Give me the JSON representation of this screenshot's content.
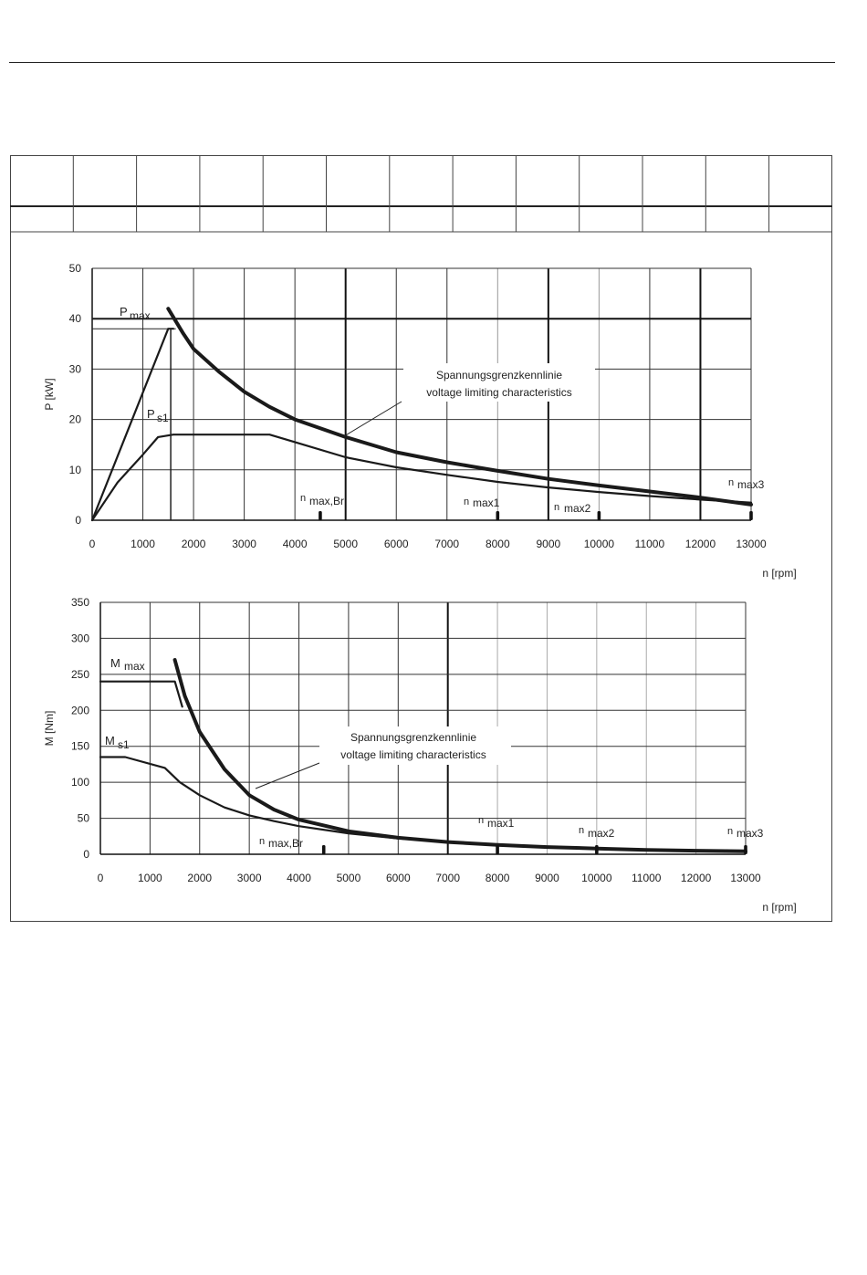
{
  "charts": {
    "power": {
      "ylabel": "P [kW]",
      "xlabel": "n [rpm]",
      "xticks": [
        "0",
        "1000",
        "2000",
        "3000",
        "4000",
        "5000",
        "6000",
        "7000",
        "8000",
        "9000",
        "10000",
        "11000",
        "12000",
        "13000"
      ],
      "yticks": [
        "0",
        "10",
        "20",
        "30",
        "40",
        "50"
      ],
      "annotation_line1": "Spannungsgrenzkennlinie",
      "annotation_line2": "voltage limiting characteristics",
      "label_pmax_main": "P",
      "label_pmax_sub": "max",
      "label_ps1_main": "P",
      "label_ps1_sub": "s1",
      "label_nmaxbr_main": "n",
      "label_nmaxbr_sub": "max,Br",
      "label_nmax1_main": "n",
      "label_nmax1_sub": "max1",
      "label_nmax2_main": "n",
      "label_nmax2_sub": "max2",
      "label_nmax3_main": "n",
      "label_nmax3_sub": "max3"
    },
    "torque": {
      "ylabel": "M [Nm]",
      "xlabel": "n [rpm]",
      "xticks": [
        "0",
        "1000",
        "2000",
        "3000",
        "4000",
        "5000",
        "6000",
        "7000",
        "8000",
        "9000",
        "10000",
        "11000",
        "12000",
        "13000"
      ],
      "yticks": [
        "0",
        "50",
        "100",
        "150",
        "200",
        "250",
        "300",
        "350"
      ],
      "annotation_line1": "Spannungsgrenzkennlinie",
      "annotation_line2": "voltage limiting characteristics",
      "label_mmax_main": "M",
      "label_mmax_sub": "max",
      "label_ms1_main": "M",
      "label_ms1_sub": "s1",
      "label_nmaxbr_main": "n",
      "label_nmaxbr_sub": "max,Br",
      "label_nmax1_main": "n",
      "label_nmax1_sub": "max1",
      "label_nmax2_main": "n",
      "label_nmax2_sub": "max2",
      "label_nmax3_main": "n",
      "label_nmax3_sub": "max3"
    }
  },
  "chart_data": [
    {
      "type": "line",
      "xlabel": "n [rpm]",
      "ylabel": "P [kW]",
      "xlim": [
        0,
        13000
      ],
      "ylim": [
        0,
        50
      ],
      "grid": true,
      "series": [
        {
          "name": "P max",
          "x": [
            0,
            1500,
            1600
          ],
          "y": [
            0,
            38,
            38
          ]
        },
        {
          "name": "P s1",
          "x": [
            0,
            500,
            1000,
            1300,
            1600,
            3500,
            4000,
            5000,
            6000,
            7000,
            8000,
            9000,
            10000,
            11000,
            12000,
            13000
          ],
          "y": [
            0,
            7.5,
            13,
            16.5,
            17,
            17,
            15.5,
            12.5,
            10.5,
            9,
            7.6,
            6.5,
            5.6,
            4.8,
            4.1,
            3.5
          ]
        },
        {
          "name": "Spannungsgrenzkennlinie voltage limiting characteristics",
          "x": [
            1500,
            1800,
            2000,
            2500,
            3000,
            3500,
            4000,
            5000,
            6000,
            7000,
            8000,
            9000,
            10000,
            11000,
            12000,
            13000
          ],
          "y": [
            42,
            37,
            34,
            29.5,
            25.5,
            22.5,
            20,
            16.5,
            13.5,
            11.5,
            9.8,
            8.2,
            6.9,
            5.7,
            4.5,
            3.1
          ]
        }
      ],
      "markers": [
        {
          "name": "n max,Br",
          "x": 4500
        },
        {
          "name": "n max1",
          "x": 8000
        },
        {
          "name": "n max2",
          "x": 10000
        },
        {
          "name": "n max3",
          "x": 13000
        }
      ]
    },
    {
      "type": "line",
      "xlabel": "n [rpm]",
      "ylabel": "M [Nm]",
      "xlim": [
        0,
        13000
      ],
      "ylim": [
        0,
        350
      ],
      "grid": true,
      "series": [
        {
          "name": "M max",
          "x": [
            0,
            1500,
            1650
          ],
          "y": [
            240,
            240,
            205
          ]
        },
        {
          "name": "M s1",
          "x": [
            0,
            500,
            1300,
            1600,
            2000,
            2500,
            3000,
            3500,
            4000,
            5000,
            6000,
            7000,
            8000,
            9000,
            10000,
            11000,
            12000,
            13000
          ],
          "y": [
            135,
            135,
            120,
            100,
            82,
            65,
            54,
            46,
            39,
            29,
            22,
            17,
            13,
            10,
            8,
            6,
            5,
            4
          ]
        },
        {
          "name": "Spannungsgrenzkennlinie voltage limiting characteristics",
          "x": [
            1500,
            1700,
            2000,
            2500,
            3000,
            3500,
            4000,
            5000,
            6000,
            7000,
            8000,
            9000,
            10000,
            11000,
            12000,
            13000
          ],
          "y": [
            270,
            220,
            170,
            118,
            82,
            62,
            48,
            32,
            23,
            17,
            13,
            10,
            8,
            6,
            5,
            4
          ]
        }
      ],
      "markers": [
        {
          "name": "n max,Br",
          "x": 4500
        },
        {
          "name": "n max1",
          "x": 8000
        },
        {
          "name": "n max2",
          "x": 10000
        },
        {
          "name": "n max3",
          "x": 13000
        }
      ]
    }
  ]
}
